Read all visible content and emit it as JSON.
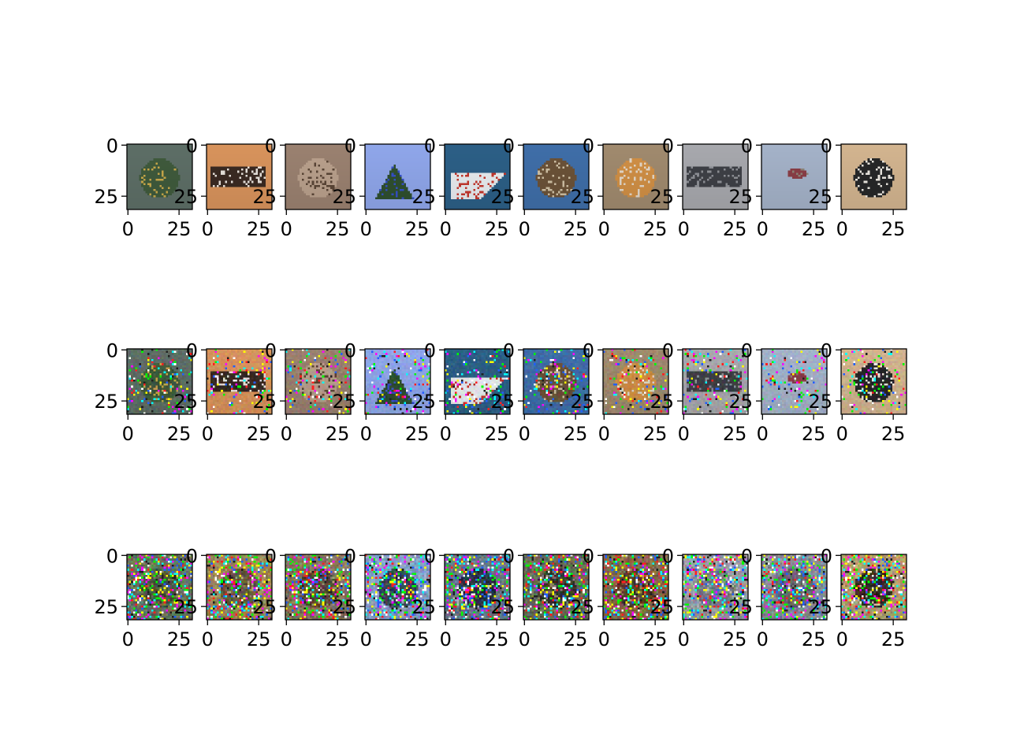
{
  "chart_data": {
    "type": "image-grid",
    "grid": {
      "rows": 3,
      "cols": 10
    },
    "image_size": [
      32,
      32
    ],
    "axis_ticks": {
      "x": [
        {
          "value": 0,
          "label": "0"
        },
        {
          "value": 25,
          "label": "25"
        }
      ],
      "y": [
        {
          "value": 0,
          "label": "0"
        },
        {
          "value": 25,
          "label": "25"
        }
      ]
    },
    "rows": [
      {
        "noise": 0.0,
        "panels": [
          {
            "bg": "#5d6e66",
            "fg": "#3f5a3c",
            "accent": "#c8a84a",
            "shape": "blob"
          },
          {
            "bg": "#d8935c",
            "fg": "#3a2a22",
            "accent": "#e8e2dc",
            "shape": "band"
          },
          {
            "bg": "#9a8170",
            "fg": "#b9a08c",
            "accent": "#5a4536",
            "shape": "blob"
          },
          {
            "bg": "#8fa6ea",
            "fg": "#2f4f2f",
            "accent": "#3550c8",
            "shape": "triangle"
          },
          {
            "bg": "#2c5f86",
            "fg": "#e8ecef",
            "accent": "#c4362c",
            "shape": "hull"
          },
          {
            "bg": "#3f6ea8",
            "fg": "#6b5238",
            "accent": "#cfc0a4",
            "shape": "blob"
          },
          {
            "bg": "#a08a6e",
            "fg": "#d08f45",
            "accent": "#e2d7c8",
            "shape": "blob"
          },
          {
            "bg": "#a7a8ad",
            "fg": "#3e4046",
            "accent": "#8e9096",
            "shape": "band"
          },
          {
            "bg": "#a4b2c8",
            "fg": "#8a3e46",
            "accent": "#8e8578",
            "shape": "small"
          },
          {
            "bg": "#d2b48f",
            "fg": "#262728",
            "accent": "#ece9e2",
            "shape": "blob"
          }
        ]
      },
      {
        "noise": 0.35,
        "panels": [
          {
            "bg": "#5d6e66",
            "fg": "#3f5a3c",
            "accent": "#c8a84a",
            "shape": "blob"
          },
          {
            "bg": "#d8935c",
            "fg": "#3a2a22",
            "accent": "#e8e2dc",
            "shape": "band"
          },
          {
            "bg": "#9a8170",
            "fg": "#b9a08c",
            "accent": "#5a4536",
            "shape": "blob"
          },
          {
            "bg": "#8fa6ea",
            "fg": "#2f4f2f",
            "accent": "#3550c8",
            "shape": "triangle"
          },
          {
            "bg": "#2c5f86",
            "fg": "#e8ecef",
            "accent": "#c4362c",
            "shape": "hull"
          },
          {
            "bg": "#3f6ea8",
            "fg": "#6b5238",
            "accent": "#cfc0a4",
            "shape": "blob"
          },
          {
            "bg": "#a08a6e",
            "fg": "#d08f45",
            "accent": "#e2d7c8",
            "shape": "blob"
          },
          {
            "bg": "#a7a8ad",
            "fg": "#3e4046",
            "accent": "#8e9096",
            "shape": "band"
          },
          {
            "bg": "#a4b2c8",
            "fg": "#8a3e46",
            "accent": "#8e8578",
            "shape": "small"
          },
          {
            "bg": "#d2b48f",
            "fg": "#262728",
            "accent": "#ece9e2",
            "shape": "blob"
          }
        ]
      },
      {
        "noise": 0.9,
        "panels": [
          {
            "bg": "#6a7560",
            "fg": "#4a5a40",
            "accent": "#8a7a50",
            "shape": "blob"
          },
          {
            "bg": "#a08858",
            "fg": "#6a5a40",
            "accent": "#b8a070",
            "shape": "blob"
          },
          {
            "bg": "#8a7a60",
            "fg": "#5a4a38",
            "accent": "#a89070",
            "shape": "blob"
          },
          {
            "bg": "#8aa0c8",
            "fg": "#3a4a5a",
            "accent": "#b0c0e0",
            "shape": "blob"
          },
          {
            "bg": "#6a7a8a",
            "fg": "#2a3a48",
            "accent": "#c0c8d0",
            "shape": "blob"
          },
          {
            "bg": "#6a7058",
            "fg": "#3a3a30",
            "accent": "#8a8070",
            "shape": "blob"
          },
          {
            "bg": "#8a6a48",
            "fg": "#5a4028",
            "accent": "#a88a60",
            "shape": "blob"
          },
          {
            "bg": "#9aa0a8",
            "fg": "#7a8088",
            "accent": "#b0b4b8",
            "shape": "blob"
          },
          {
            "bg": "#8a909a",
            "fg": "#6a6870",
            "accent": "#a8aab0",
            "shape": "blob"
          },
          {
            "bg": "#b8a070",
            "fg": "#3a3024",
            "accent": "#d8d0b8",
            "shape": "blob"
          }
        ]
      }
    ]
  }
}
